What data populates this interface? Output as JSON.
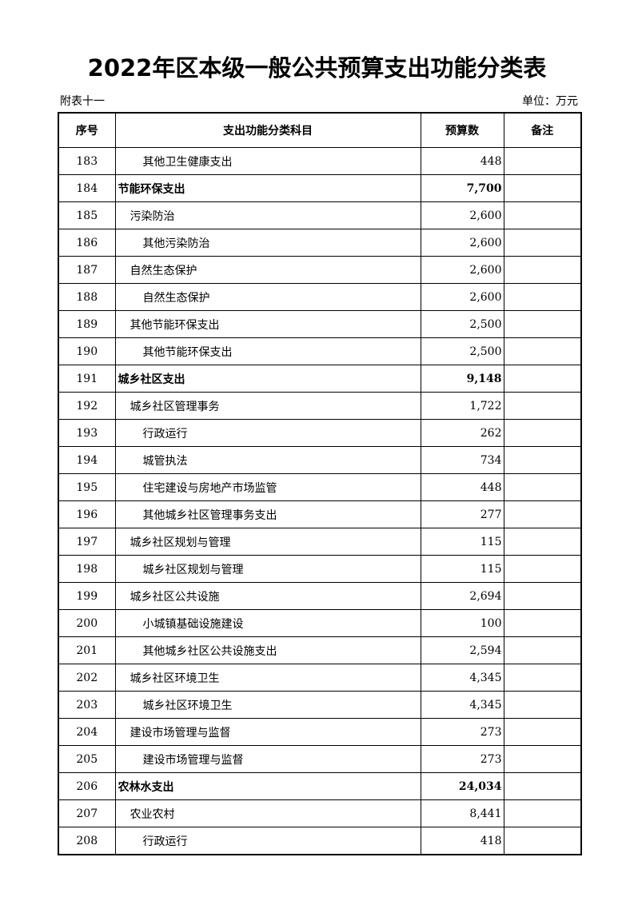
{
  "title": "2022年区本级一般公共预算支出功能分类表",
  "subtitle_left": "附表十一",
  "unit": "单位：万元",
  "headers": [
    "序号",
    "支出功能分类科目",
    "预算数",
    "备注"
  ],
  "rows": [
    {
      "no": "183",
      "name": "其他卫生健康支出",
      "amount": "448",
      "level": 2
    },
    {
      "no": "184",
      "name": "节能环保支出",
      "amount": "7,700",
      "level": 0
    },
    {
      "no": "185",
      "name": "污染防治",
      "amount": "2,600",
      "level": 1
    },
    {
      "no": "186",
      "name": "其他污染防治",
      "amount": "2,600",
      "level": 2
    },
    {
      "no": "187",
      "name": "自然生态保护",
      "amount": "2,600",
      "level": 1
    },
    {
      "no": "188",
      "name": "自然生态保护",
      "amount": "2,600",
      "level": 2
    },
    {
      "no": "189",
      "name": "其他节能环保支出",
      "amount": "2,500",
      "level": 1
    },
    {
      "no": "190",
      "name": "其他节能环保支出",
      "amount": "2,500",
      "level": 2
    },
    {
      "no": "191",
      "name": "城乡社区支出",
      "amount": "9,148",
      "level": 0
    },
    {
      "no": "192",
      "name": "城乡社区管理事务",
      "amount": "1,722",
      "level": 1
    },
    {
      "no": "193",
      "name": "行政运行",
      "amount": "262",
      "level": 2
    },
    {
      "no": "194",
      "name": "城管执法",
      "amount": "734",
      "level": 2
    },
    {
      "no": "195",
      "name": "住宅建设与房地产市场监管",
      "amount": "448",
      "level": 2
    },
    {
      "no": "196",
      "name": "其他城乡社区管理事务支出",
      "amount": "277",
      "level": 2
    },
    {
      "no": "197",
      "name": "城乡社区规划与管理",
      "amount": "115",
      "level": 1
    },
    {
      "no": "198",
      "name": "城乡社区规划与管理",
      "amount": "115",
      "level": 2
    },
    {
      "no": "199",
      "name": "城乡社区公共设施",
      "amount": "2,694",
      "level": 1
    },
    {
      "no": "200",
      "name": "小城镇基础设施建设",
      "amount": "100",
      "level": 2
    },
    {
      "no": "201",
      "name": "其他城乡社区公共设施支出",
      "amount": "2,594",
      "level": 2
    },
    {
      "no": "202",
      "name": "城乡社区环境卫生",
      "amount": "4,345",
      "level": 1
    },
    {
      "no": "203",
      "name": "城乡社区环境卫生",
      "amount": "4,345",
      "level": 2
    },
    {
      "no": "204",
      "name": "建设市场管理与监督",
      "amount": "273",
      "level": 1
    },
    {
      "no": "205",
      "name": "建设市场管理与监督",
      "amount": "273",
      "level": 2
    },
    {
      "no": "206",
      "name": "农林水支出",
      "amount": "24,034",
      "level": 0
    },
    {
      "no": "207",
      "name": "农业农村",
      "amount": "8,441",
      "level": 1
    },
    {
      "no": "208",
      "name": "行政运行",
      "amount": "418",
      "level": 2
    }
  ]
}
